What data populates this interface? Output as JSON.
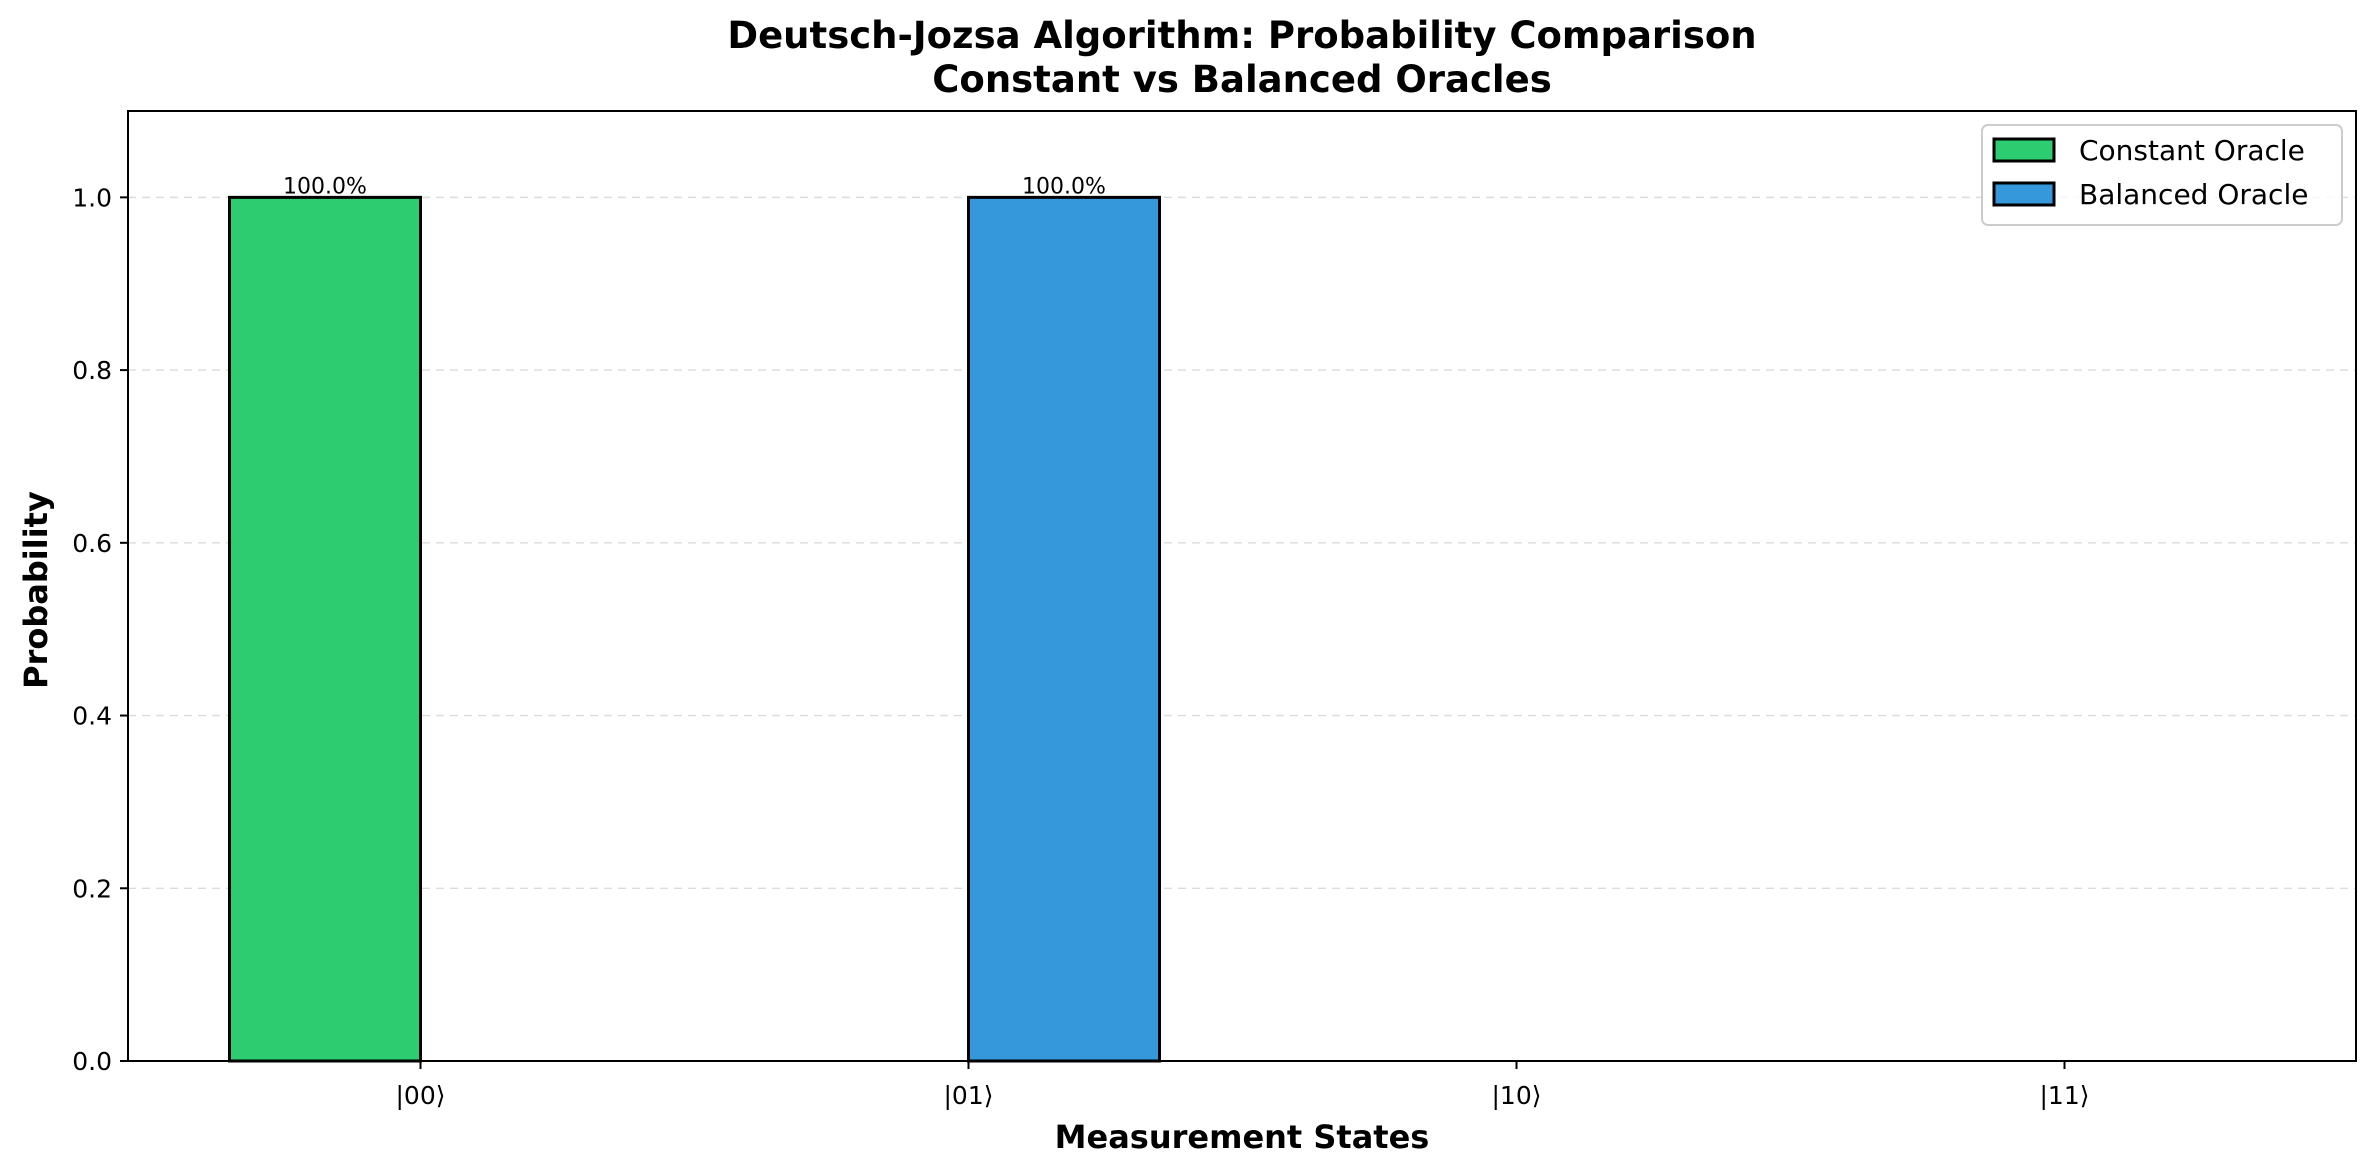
{
  "chart_data": {
    "type": "bar",
    "title": [
      "Deutsch-Jozsa Algorithm: Probability Comparison",
      "Constant vs Balanced Oracles"
    ],
    "xlabel": "Measurement States",
    "ylabel": "Probability",
    "categories": [
      "|00⟩",
      "|01⟩",
      "|10⟩",
      "|11⟩"
    ],
    "ylim": [
      0,
      1.1
    ],
    "yticks": [
      0.0,
      0.2,
      0.4,
      0.6,
      0.8,
      1.0
    ],
    "ytick_labels": [
      "0.0",
      "0.2",
      "0.4",
      "0.6",
      "0.8",
      "1.0"
    ],
    "grid": "y, dashed",
    "legend_position": "top-right",
    "series": [
      {
        "name": "Constant Oracle",
        "color": "#2ecc71",
        "values": [
          1.0,
          0.0,
          0.0,
          0.0
        ]
      },
      {
        "name": "Balanced Oracle",
        "color": "#3498db",
        "values": [
          0.0,
          1.0,
          0.0,
          0.0
        ]
      }
    ],
    "bar_labels": [
      {
        "series": 0,
        "category": 0,
        "text": "100.0%"
      },
      {
        "series": 1,
        "category": 1,
        "text": "100.0%"
      }
    ]
  }
}
